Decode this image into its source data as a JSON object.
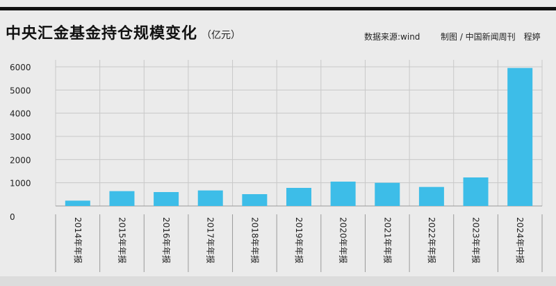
{
  "header": {
    "title": "中央汇金基金持仓规模变化",
    "unit": "（亿元）",
    "source": "数据来源:wind",
    "credit": "制图 / 中国新闻周刊　程婷"
  },
  "colors": {
    "bar": "#3dbde8",
    "grid": "#c8c8c8",
    "background": "#ebebeb"
  },
  "chart_data": {
    "type": "bar",
    "title": "中央汇金基金持仓规模变化",
    "ylabel": "（亿元）",
    "xlabel": "",
    "categories": [
      "2014年年报",
      "2015年年报",
      "2016年年报",
      "2017年年报",
      "2018年年报",
      "2019年年报",
      "2020年年报",
      "2021年年报",
      "2022年年报",
      "2023年年报",
      "2024年中报"
    ],
    "values": [
      230,
      640,
      600,
      670,
      510,
      780,
      1050,
      1000,
      820,
      1230,
      5950
    ],
    "yticks": [
      0,
      1000,
      2000,
      3000,
      4000,
      5000,
      6000
    ],
    "ylim": [
      0,
      6300
    ],
    "grid": true,
    "legend": "none"
  }
}
